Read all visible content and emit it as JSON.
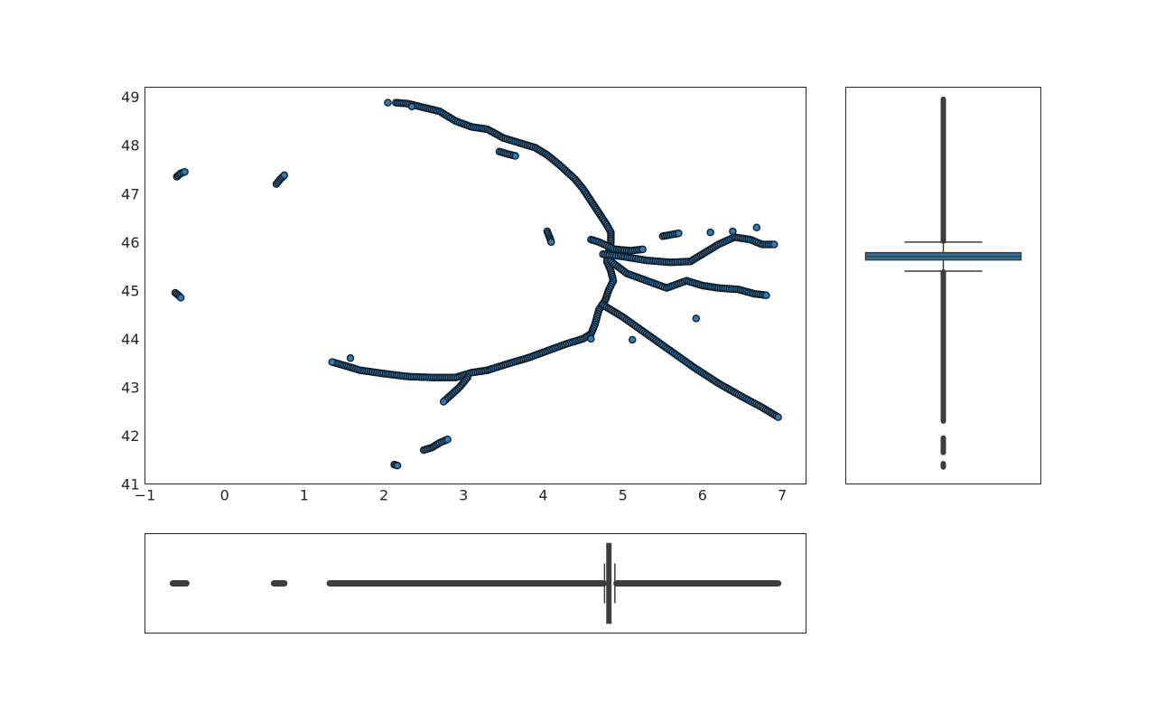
{
  "chart_data": [
    {
      "type": "scatter",
      "title": "",
      "xlabel": "",
      "ylabel": "",
      "xlim": [
        -1,
        7.3
      ],
      "ylim": [
        41,
        49.2
      ],
      "grid": false,
      "x_ticks": [
        "−1",
        "0",
        "1",
        "2",
        "3",
        "4",
        "5",
        "6",
        "7"
      ],
      "y_ticks": [
        "41",
        "42",
        "43",
        "44",
        "45",
        "46",
        "47",
        "48",
        "49"
      ],
      "marker_color": "#2d7bb6",
      "edge_color": "#111b24",
      "paths": [
        {
          "points": [
            [
              2.15,
              48.88
            ],
            [
              2.3,
              48.86
            ],
            [
              2.5,
              48.78
            ],
            [
              2.7,
              48.7
            ],
            [
              2.9,
              48.5
            ],
            [
              3.1,
              48.38
            ],
            [
              3.3,
              48.33
            ],
            [
              3.5,
              48.15
            ],
            [
              3.7,
              48.05
            ],
            [
              3.9,
              47.95
            ],
            [
              4.05,
              47.8
            ],
            [
              4.2,
              47.6
            ],
            [
              4.4,
              47.3
            ],
            [
              4.5,
              47.1
            ],
            [
              4.6,
              46.85
            ],
            [
              4.7,
              46.6
            ],
            [
              4.8,
              46.35
            ],
            [
              4.85,
              46.2
            ],
            [
              4.85,
              46.0
            ],
            [
              4.82,
              45.8
            ],
            [
              4.8,
              45.6
            ],
            [
              4.85,
              45.4
            ],
            [
              4.88,
              45.2
            ],
            [
              4.82,
              45.0
            ],
            [
              4.78,
              44.8
            ],
            [
              4.7,
              44.6
            ],
            [
              4.65,
              44.3
            ],
            [
              4.6,
              44.1
            ],
            [
              4.5,
              44.0
            ],
            [
              4.3,
              43.9
            ],
            [
              4.0,
              43.72
            ],
            [
              3.8,
              43.6
            ],
            [
              3.55,
              43.48
            ],
            [
              3.3,
              43.35
            ],
            [
              3.1,
              43.3
            ],
            [
              2.9,
              43.2
            ],
            [
              2.6,
              43.2
            ],
            [
              2.3,
              43.22
            ],
            [
              2.0,
              43.28
            ],
            [
              1.7,
              43.35
            ],
            [
              1.5,
              43.45
            ],
            [
              1.35,
              43.52
            ]
          ]
        },
        {
          "points": [
            [
              4.75,
              44.7
            ],
            [
              5.0,
              44.45
            ],
            [
              5.3,
              44.1
            ],
            [
              5.6,
              43.75
            ],
            [
              5.9,
              43.4
            ],
            [
              6.2,
              43.08
            ],
            [
              6.5,
              42.8
            ],
            [
              6.75,
              42.58
            ],
            [
              6.95,
              42.38
            ]
          ]
        },
        {
          "points": [
            [
              3.05,
              43.2
            ],
            [
              2.95,
              43.0
            ],
            [
              2.85,
              42.85
            ],
            [
              2.75,
              42.7
            ]
          ]
        },
        {
          "points": [
            [
              4.75,
              45.75
            ],
            [
              5.0,
              45.7
            ],
            [
              5.3,
              45.62
            ],
            [
              5.6,
              45.58
            ],
            [
              5.85,
              45.6
            ],
            [
              6.0,
              45.75
            ],
            [
              6.2,
              45.95
            ],
            [
              6.4,
              46.1
            ],
            [
              6.6,
              46.05
            ],
            [
              6.75,
              45.95
            ],
            [
              6.9,
              45.95
            ]
          ]
        },
        {
          "points": [
            [
              4.85,
              45.6
            ],
            [
              5.05,
              45.35
            ],
            [
              5.3,
              45.2
            ],
            [
              5.55,
              45.05
            ],
            [
              5.8,
              45.2
            ],
            [
              6.0,
              45.1
            ],
            [
              6.2,
              45.05
            ],
            [
              6.45,
              45.02
            ],
            [
              6.65,
              44.93
            ],
            [
              6.8,
              44.9
            ]
          ]
        },
        {
          "points": [
            [
              4.6,
              46.05
            ],
            [
              4.7,
              46.0
            ],
            [
              4.9,
              45.85
            ],
            [
              5.1,
              45.82
            ],
            [
              5.25,
              45.85
            ]
          ]
        },
        {
          "points": [
            [
              5.5,
              46.12
            ],
            [
              5.6,
              46.15
            ],
            [
              5.7,
              46.18
            ]
          ]
        },
        {
          "points": [
            [
              2.5,
              41.7
            ],
            [
              2.6,
              41.75
            ],
            [
              2.7,
              41.85
            ],
            [
              2.8,
              41.92
            ]
          ]
        },
        {
          "points": [
            [
              3.45,
              47.87
            ],
            [
              3.55,
              47.82
            ],
            [
              3.65,
              47.78
            ]
          ]
        },
        {
          "points": [
            [
              -0.6,
              47.35
            ],
            [
              -0.55,
              47.42
            ],
            [
              -0.5,
              47.45
            ]
          ]
        },
        {
          "points": [
            [
              0.65,
              47.2
            ],
            [
              0.7,
              47.3
            ],
            [
              0.75,
              47.38
            ]
          ]
        },
        {
          "points": [
            [
              -0.62,
              44.95
            ],
            [
              -0.58,
              44.9
            ],
            [
              -0.55,
              44.85
            ]
          ]
        },
        {
          "points": [
            [
              2.13,
              41.4
            ],
            [
              2.17,
              41.38
            ]
          ]
        },
        {
          "points": [
            [
              4.05,
              46.22
            ],
            [
              4.08,
              46.1
            ],
            [
              4.1,
              46.0
            ]
          ]
        }
      ],
      "isolated_points": [
        [
          2.05,
          48.88
        ],
        [
          4.6,
          44.0
        ],
        [
          5.12,
          43.98
        ],
        [
          5.92,
          44.42
        ],
        [
          1.58,
          43.6
        ],
        [
          6.1,
          46.2
        ],
        [
          6.68,
          46.3
        ],
        [
          2.35,
          48.8
        ],
        [
          6.38,
          46.22
        ]
      ]
    },
    {
      "type": "box",
      "orientation": "vertical",
      "axis": "y",
      "ylim": [
        41,
        49.2
      ],
      "box_color": "#3274a1",
      "line_color": "#3d3d3d",
      "q1": 45.63,
      "q3": 45.78,
      "median": 45.7,
      "whisker_low": 45.4,
      "whisker_high": 46.0,
      "outliers": [
        [
          41.35,
          41.42
        ],
        [
          41.65,
          41.95
        ],
        [
          42.3,
          45.38
        ],
        [
          46.02,
          48.95
        ]
      ]
    },
    {
      "type": "box",
      "orientation": "horizontal",
      "axis": "x",
      "xlim": [
        -1,
        7.3
      ],
      "box_color": "#3274a1",
      "line_color": "#3d3d3d",
      "q1": 4.8,
      "q3": 4.85,
      "median": 4.83,
      "whisker_low": 4.77,
      "whisker_high": 4.9,
      "outliers": [
        [
          -0.65,
          -0.48
        ],
        [
          0.62,
          0.75
        ],
        [
          1.32,
          4.76
        ],
        [
          4.92,
          6.95
        ]
      ]
    }
  ]
}
